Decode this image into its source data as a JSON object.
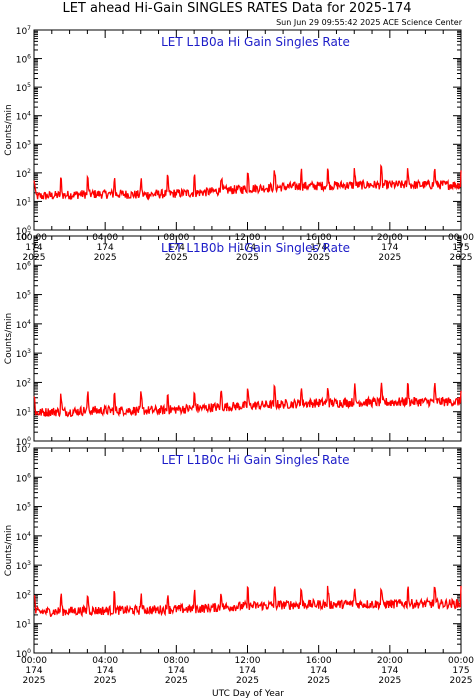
{
  "title": "LET ahead Hi-Gain SINGLES RATES Data for 2025-174",
  "timestamp": "Sun Jun 29 09:55:42 2025 ACE Science Center",
  "xlabel": "UTC Day of Year",
  "colors": {
    "series": "#ff0000",
    "panel_title": "#1c1cc8"
  },
  "chart_data": [
    {
      "type": "line",
      "title": "LET L1B0a Hi Gain Singles Rate",
      "ylabel": "Counts/min",
      "yscale": "log",
      "ylim_exponent": [
        0,
        7
      ],
      "x_ticks": [
        {
          "time": "00:00",
          "day": "174",
          "year": "2025"
        },
        {
          "time": "04:00",
          "day": "174",
          "year": "2025"
        },
        {
          "time": "08:00",
          "day": "174",
          "year": "2025"
        },
        {
          "time": "12:00",
          "day": "174",
          "year": "2025"
        },
        {
          "time": "16:00",
          "day": "174",
          "year": "2025"
        },
        {
          "time": "20:00",
          "day": "174",
          "year": "2025"
        },
        {
          "time": "00:00",
          "day": "175",
          "year": "2025"
        }
      ],
      "series": [
        {
          "x_hours": [
            0,
            1,
            2,
            3,
            4,
            5,
            6,
            7,
            8,
            9,
            10,
            11,
            12,
            13,
            14,
            15,
            16,
            17,
            18,
            19,
            20,
            21,
            22,
            23,
            24
          ],
          "values": [
            15,
            16,
            17,
            18,
            18,
            18,
            17,
            18,
            19,
            20,
            22,
            25,
            28,
            30,
            32,
            34,
            35,
            36,
            37,
            38,
            38,
            38,
            38,
            38,
            38
          ]
        }
      ]
    },
    {
      "type": "line",
      "title": "LET L1B0b Hi Gain Singles Rate",
      "ylabel": "Counts/min",
      "yscale": "log",
      "ylim_exponent": [
        0,
        7
      ],
      "x_ticks": [],
      "series": [
        {
          "x_hours": [
            0,
            1,
            2,
            3,
            4,
            5,
            6,
            7,
            8,
            9,
            10,
            11,
            12,
            13,
            14,
            15,
            16,
            17,
            18,
            19,
            20,
            21,
            22,
            23,
            24
          ],
          "values": [
            9,
            10,
            10,
            11,
            11,
            11,
            11,
            11,
            12,
            13,
            14,
            15,
            16,
            17,
            18,
            19,
            20,
            20,
            21,
            21,
            21,
            22,
            22,
            22,
            22
          ]
        }
      ]
    },
    {
      "type": "line",
      "title": "LET L1B0c Hi Gain Singles Rate",
      "ylabel": "Counts/min",
      "yscale": "log",
      "ylim_exponent": [
        0,
        7
      ],
      "x_ticks": [
        {
          "time": "00:00",
          "day": "174",
          "year": "2025"
        },
        {
          "time": "04:00",
          "day": "174",
          "year": "2025"
        },
        {
          "time": "08:00",
          "day": "174",
          "year": "2025"
        },
        {
          "time": "12:00",
          "day": "174",
          "year": "2025"
        },
        {
          "time": "16:00",
          "day": "174",
          "year": "2025"
        },
        {
          "time": "20:00",
          "day": "174",
          "year": "2025"
        },
        {
          "time": "00:00",
          "day": "175",
          "year": "2025"
        }
      ],
      "series": [
        {
          "x_hours": [
            0,
            1,
            2,
            3,
            4,
            5,
            6,
            7,
            8,
            9,
            10,
            11,
            12,
            13,
            14,
            15,
            16,
            17,
            18,
            19,
            20,
            21,
            22,
            23,
            24
          ],
          "values": [
            25,
            26,
            27,
            28,
            28,
            29,
            29,
            30,
            31,
            32,
            35,
            38,
            40,
            42,
            44,
            45,
            46,
            46,
            47,
            47,
            47,
            48,
            48,
            48,
            48
          ]
        }
      ]
    }
  ]
}
